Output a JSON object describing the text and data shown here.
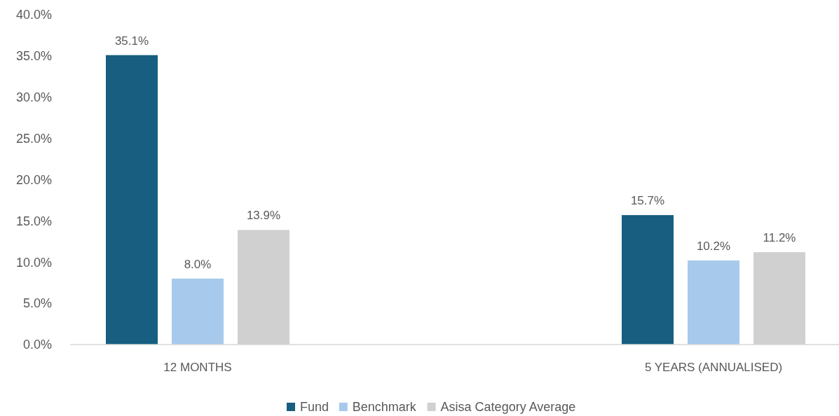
{
  "chart_data": {
    "type": "bar",
    "categories": [
      "12 MONTHS",
      "5 YEARS (ANNUALISED)"
    ],
    "series": [
      {
        "name": "Fund",
        "color": "#175e80",
        "values": [
          35.1,
          15.7
        ],
        "value_labels": [
          "35.1%",
          "15.7%"
        ]
      },
      {
        "name": "Benchmark",
        "color": "#a7caec",
        "values": [
          8.0,
          10.2
        ],
        "value_labels": [
          "8.0%",
          "10.2%"
        ]
      },
      {
        "name": "Asisa Category Average",
        "color": "#d0d0d0",
        "values": [
          13.9,
          11.2
        ],
        "value_labels": [
          "13.9%",
          "11.2%"
        ]
      }
    ],
    "ylim": [
      0,
      40
    ],
    "yticks": [
      {
        "value": 0,
        "label": "0.0%"
      },
      {
        "value": 5,
        "label": "5.0%"
      },
      {
        "value": 10,
        "label": "10.0%"
      },
      {
        "value": 15,
        "label": "15.0%"
      },
      {
        "value": 20,
        "label": "20.0%"
      },
      {
        "value": 25,
        "label": "25.0%"
      },
      {
        "value": 30,
        "label": "30.0%"
      },
      {
        "value": 35,
        "label": "35.0%"
      },
      {
        "value": 40,
        "label": "40.0%"
      }
    ],
    "grid": false,
    "legend": "bottom"
  }
}
